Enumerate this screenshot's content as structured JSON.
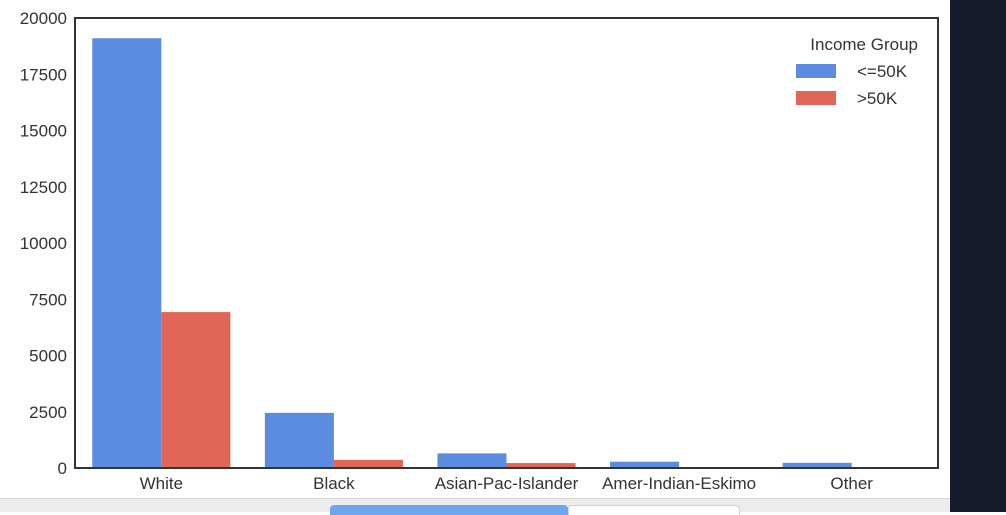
{
  "chart_data": {
    "type": "bar",
    "title": "",
    "xlabel": "",
    "ylabel": "",
    "categories": [
      "White",
      "Black",
      "Asian-Pac-Islander",
      "Amer-Indian-Eskimo",
      "Other"
    ],
    "series": [
      {
        "name": "<=50K",
        "values": [
          19100,
          2450,
          650,
          280,
          230
        ],
        "color": "#5b8ce0"
      },
      {
        "name": ">50K",
        "values": [
          6930,
          360,
          220,
          40,
          25
        ],
        "color": "#e06657"
      }
    ],
    "ylim": [
      0,
      20000
    ],
    "yticks": [
      "0",
      "2500",
      "5000",
      "7500",
      "10000",
      "12500",
      "15000",
      "17500",
      "20000"
    ],
    "grid": false,
    "legend": {
      "title": "Income Group",
      "position": "top-right"
    }
  }
}
